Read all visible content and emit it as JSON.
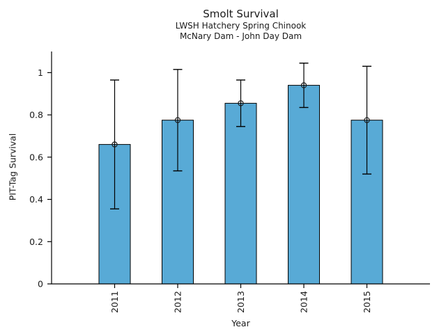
{
  "chart_data": {
    "type": "bar",
    "title": "Smolt Survival",
    "subtitle_line1": "LWSH Hatchery Spring Chinook",
    "subtitle_line2": "McNary Dam - John Day Dam",
    "xlabel": "Year",
    "ylabel": "PIT-Tag Survival",
    "categories": [
      "2011",
      "2012",
      "2013",
      "2014",
      "2015"
    ],
    "values": [
      0.66,
      0.775,
      0.855,
      0.94,
      0.775
    ],
    "error_low": [
      0.355,
      0.535,
      0.745,
      0.835,
      0.52
    ],
    "error_high": [
      0.965,
      1.015,
      0.965,
      1.045,
      1.03
    ],
    "yticks": [
      0,
      0.2,
      0.4,
      0.6,
      0.8,
      1
    ],
    "ytick_labels": [
      "0",
      "0.2",
      "0.4",
      "0.6",
      "0.8",
      "1"
    ],
    "ylim": [
      0,
      1.1
    ],
    "xtick_rotation": 90,
    "grid": false,
    "legend_position": "none",
    "bar_color": "#58AAD6",
    "bar_edge_color": "#000000",
    "error_color": "#000000",
    "marker": "open-circle",
    "axis_color": "#000000",
    "text_color": "#1a1a1a"
  }
}
